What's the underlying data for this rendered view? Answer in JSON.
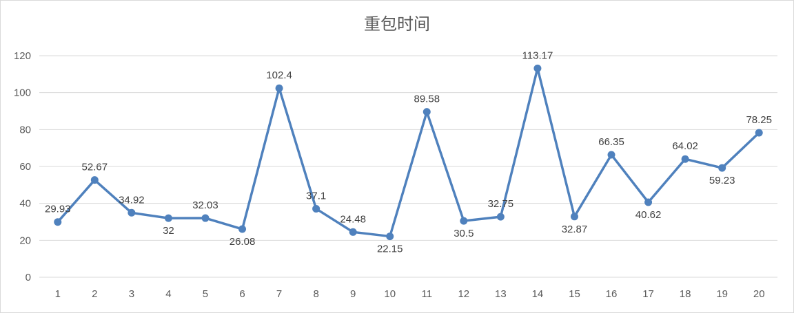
{
  "chart_data": {
    "type": "line",
    "title": "重包时间",
    "xlabel": "",
    "ylabel": "",
    "categories": [
      "1",
      "2",
      "3",
      "4",
      "5",
      "6",
      "7",
      "8",
      "9",
      "10",
      "11",
      "12",
      "13",
      "14",
      "15",
      "16",
      "17",
      "18",
      "19",
      "20"
    ],
    "series": [
      {
        "values": [
          29.93,
          52.67,
          34.92,
          32,
          32.03,
          26.08,
          102.4,
          37.1,
          24.48,
          22.15,
          89.58,
          30.5,
          32.75,
          113.17,
          32.87,
          66.35,
          40.62,
          64.02,
          59.23,
          78.25
        ],
        "labels": [
          "29.93",
          "52.67",
          "34.92",
          "32",
          "32.03",
          "26.08",
          "102.4",
          "37.1",
          "24.48",
          "22.15",
          "89.58",
          "30.5",
          "32.75",
          "113.17",
          "32.87",
          "66.35",
          "40.62",
          "64.02",
          "59.23",
          "78.25"
        ],
        "color": "#4f81bd"
      }
    ],
    "ylim": [
      0,
      120
    ],
    "yticks": [
      "0",
      "20",
      "40",
      "60",
      "80",
      "100",
      "120"
    ],
    "grid": true,
    "legend": "none"
  }
}
